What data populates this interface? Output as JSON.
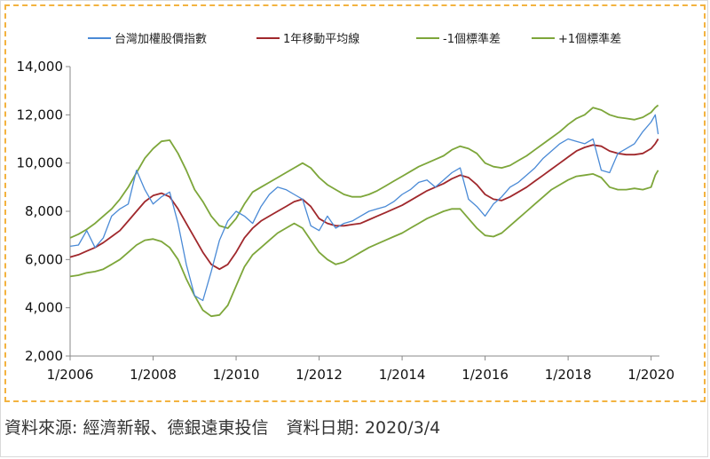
{
  "footer": {
    "source": "資料來源: 經濟新報、德銀遠東投信",
    "date": "資料日期: 2020/3/4"
  },
  "chart_data": {
    "type": "line",
    "title": "",
    "xlabel": "",
    "ylabel": "",
    "ylim": [
      2000,
      14000
    ],
    "xlim": [
      2006.0,
      2020.2
    ],
    "y_ticks": [
      "2,000",
      "4,000",
      "6,000",
      "8,000",
      "10,000",
      "12,000",
      "14,000"
    ],
    "x_ticks": [
      "1/2006",
      "1/2008",
      "1/2010",
      "1/2012",
      "1/2014",
      "1/2016",
      "1/2018",
      "1/2020"
    ],
    "legend_position": "top",
    "grid": false,
    "series": [
      {
        "name": "台灣加權股價指數",
        "color": "#4a8ad6",
        "x": [
          2006.0,
          2006.2,
          2006.4,
          2006.6,
          2006.8,
          2007.0,
          2007.2,
          2007.4,
          2007.6,
          2007.8,
          2008.0,
          2008.2,
          2008.4,
          2008.6,
          2008.8,
          2009.0,
          2009.2,
          2009.4,
          2009.6,
          2009.8,
          2010.0,
          2010.2,
          2010.4,
          2010.6,
          2010.8,
          2011.0,
          2011.2,
          2011.4,
          2011.6,
          2011.8,
          2012.0,
          2012.2,
          2012.4,
          2012.6,
          2012.8,
          2013.0,
          2013.2,
          2013.4,
          2013.6,
          2013.8,
          2014.0,
          2014.2,
          2014.4,
          2014.6,
          2014.8,
          2015.0,
          2015.2,
          2015.4,
          2015.6,
          2015.8,
          2016.0,
          2016.2,
          2016.4,
          2016.6,
          2016.8,
          2017.0,
          2017.2,
          2017.4,
          2017.6,
          2017.8,
          2018.0,
          2018.2,
          2018.4,
          2018.6,
          2018.8,
          2019.0,
          2019.2,
          2019.4,
          2019.6,
          2019.8,
          2020.0,
          2020.1,
          2020.17
        ],
        "values": [
          6550,
          6600,
          7200,
          6500,
          6900,
          7800,
          8100,
          8300,
          9700,
          8900,
          8300,
          8600,
          8800,
          7500,
          5800,
          4500,
          4300,
          5500,
          6800,
          7600,
          8000,
          7800,
          7500,
          8200,
          8700,
          9000,
          8900,
          8700,
          8500,
          7400,
          7200,
          7800,
          7300,
          7500,
          7600,
          7800,
          8000,
          8100,
          8200,
          8400,
          8700,
          8900,
          9200,
          9300,
          9000,
          9300,
          9600,
          9800,
          8500,
          8200,
          7800,
          8300,
          8600,
          9000,
          9200,
          9500,
          9800,
          10200,
          10500,
          10800,
          11000,
          10900,
          10800,
          11000,
          9700,
          9600,
          10400,
          10600,
          10800,
          11300,
          11700,
          12000,
          11200
        ]
      },
      {
        "name": "1年移動平均線",
        "color": "#a0282c",
        "x": [
          2006.0,
          2006.2,
          2006.4,
          2006.6,
          2006.8,
          2007.0,
          2007.2,
          2007.4,
          2007.6,
          2007.8,
          2008.0,
          2008.2,
          2008.4,
          2008.6,
          2008.8,
          2009.0,
          2009.2,
          2009.4,
          2009.6,
          2009.8,
          2010.0,
          2010.2,
          2010.4,
          2010.6,
          2010.8,
          2011.0,
          2011.2,
          2011.4,
          2011.6,
          2011.8,
          2012.0,
          2012.2,
          2012.4,
          2012.6,
          2012.8,
          2013.0,
          2013.2,
          2013.4,
          2013.6,
          2013.8,
          2014.0,
          2014.2,
          2014.4,
          2014.6,
          2014.8,
          2015.0,
          2015.2,
          2015.4,
          2015.6,
          2015.8,
          2016.0,
          2016.2,
          2016.4,
          2016.6,
          2016.8,
          2017.0,
          2017.2,
          2017.4,
          2017.6,
          2017.8,
          2018.0,
          2018.2,
          2018.4,
          2018.6,
          2018.8,
          2019.0,
          2019.2,
          2019.4,
          2019.6,
          2019.8,
          2020.0,
          2020.1,
          2020.17
        ],
        "values": [
          6100,
          6200,
          6350,
          6500,
          6700,
          6950,
          7200,
          7600,
          8000,
          8400,
          8650,
          8750,
          8600,
          8100,
          7500,
          6900,
          6300,
          5800,
          5600,
          5800,
          6300,
          6900,
          7300,
          7600,
          7800,
          8000,
          8200,
          8400,
          8500,
          8200,
          7700,
          7500,
          7400,
          7400,
          7450,
          7500,
          7650,
          7800,
          7950,
          8100,
          8250,
          8450,
          8650,
          8850,
          9000,
          9150,
          9350,
          9500,
          9400,
          9100,
          8700,
          8500,
          8450,
          8600,
          8800,
          9000,
          9250,
          9500,
          9750,
          10000,
          10250,
          10500,
          10650,
          10750,
          10700,
          10500,
          10400,
          10350,
          10350,
          10400,
          10600,
          10800,
          11000
        ]
      },
      {
        "name": "-1個標準差",
        "color": "#7da63a",
        "x": [
          2006.0,
          2006.2,
          2006.4,
          2006.6,
          2006.8,
          2007.0,
          2007.2,
          2007.4,
          2007.6,
          2007.8,
          2008.0,
          2008.2,
          2008.4,
          2008.6,
          2008.8,
          2009.0,
          2009.2,
          2009.4,
          2009.6,
          2009.8,
          2010.0,
          2010.2,
          2010.4,
          2010.6,
          2010.8,
          2011.0,
          2011.2,
          2011.4,
          2011.6,
          2011.8,
          2012.0,
          2012.2,
          2012.4,
          2012.6,
          2012.8,
          2013.0,
          2013.2,
          2013.4,
          2013.6,
          2013.8,
          2014.0,
          2014.2,
          2014.4,
          2014.6,
          2014.8,
          2015.0,
          2015.2,
          2015.4,
          2015.6,
          2015.8,
          2016.0,
          2016.2,
          2016.4,
          2016.6,
          2016.8,
          2017.0,
          2017.2,
          2017.4,
          2017.6,
          2017.8,
          2018.0,
          2018.2,
          2018.4,
          2018.6,
          2018.8,
          2019.0,
          2019.2,
          2019.4,
          2019.6,
          2019.8,
          2020.0,
          2020.1,
          2020.17
        ],
        "values": [
          5300,
          5350,
          5450,
          5500,
          5600,
          5800,
          6000,
          6300,
          6600,
          6800,
          6850,
          6750,
          6500,
          6000,
          5200,
          4500,
          3900,
          3650,
          3700,
          4100,
          4900,
          5700,
          6200,
          6500,
          6800,
          7100,
          7300,
          7500,
          7300,
          6800,
          6300,
          6000,
          5800,
          5900,
          6100,
          6300,
          6500,
          6650,
          6800,
          6950,
          7100,
          7300,
          7500,
          7700,
          7850,
          8000,
          8100,
          8100,
          7700,
          7300,
          7000,
          6950,
          7100,
          7400,
          7700,
          8000,
          8300,
          8600,
          8900,
          9100,
          9300,
          9450,
          9500,
          9550,
          9400,
          9000,
          8900,
          8900,
          8950,
          8900,
          9000,
          9500,
          9700
        ]
      },
      {
        "name": "+1個標準差",
        "color": "#7da63a",
        "x": [
          2006.0,
          2006.2,
          2006.4,
          2006.6,
          2006.8,
          2007.0,
          2007.2,
          2007.4,
          2007.6,
          2007.8,
          2008.0,
          2008.2,
          2008.4,
          2008.6,
          2008.8,
          2009.0,
          2009.2,
          2009.4,
          2009.6,
          2009.8,
          2010.0,
          2010.2,
          2010.4,
          2010.6,
          2010.8,
          2011.0,
          2011.2,
          2011.4,
          2011.6,
          2011.8,
          2012.0,
          2012.2,
          2012.4,
          2012.6,
          2012.8,
          2013.0,
          2013.2,
          2013.4,
          2013.6,
          2013.8,
          2014.0,
          2014.2,
          2014.4,
          2014.6,
          2014.8,
          2015.0,
          2015.2,
          2015.4,
          2015.6,
          2015.8,
          2016.0,
          2016.2,
          2016.4,
          2016.6,
          2016.8,
          2017.0,
          2017.2,
          2017.4,
          2017.6,
          2017.8,
          2018.0,
          2018.2,
          2018.4,
          2018.6,
          2018.8,
          2019.0,
          2019.2,
          2019.4,
          2019.6,
          2019.8,
          2020.0,
          2020.1,
          2020.17
        ],
        "values": [
          6900,
          7050,
          7250,
          7500,
          7800,
          8100,
          8500,
          9000,
          9600,
          10200,
          10600,
          10900,
          10950,
          10400,
          9700,
          8900,
          8400,
          7800,
          7400,
          7300,
          7700,
          8300,
          8800,
          9000,
          9200,
          9400,
          9600,
          9800,
          10000,
          9800,
          9400,
          9100,
          8900,
          8700,
          8600,
          8600,
          8700,
          8850,
          9050,
          9250,
          9450,
          9650,
          9850,
          10000,
          10150,
          10300,
          10550,
          10700,
          10600,
          10400,
          10000,
          9850,
          9800,
          9900,
          10100,
          10300,
          10550,
          10800,
          11050,
          11300,
          11600,
          11850,
          12000,
          12300,
          12200,
          12000,
          11900,
          11850,
          11800,
          11900,
          12100,
          12300,
          12400
        ]
      }
    ]
  }
}
